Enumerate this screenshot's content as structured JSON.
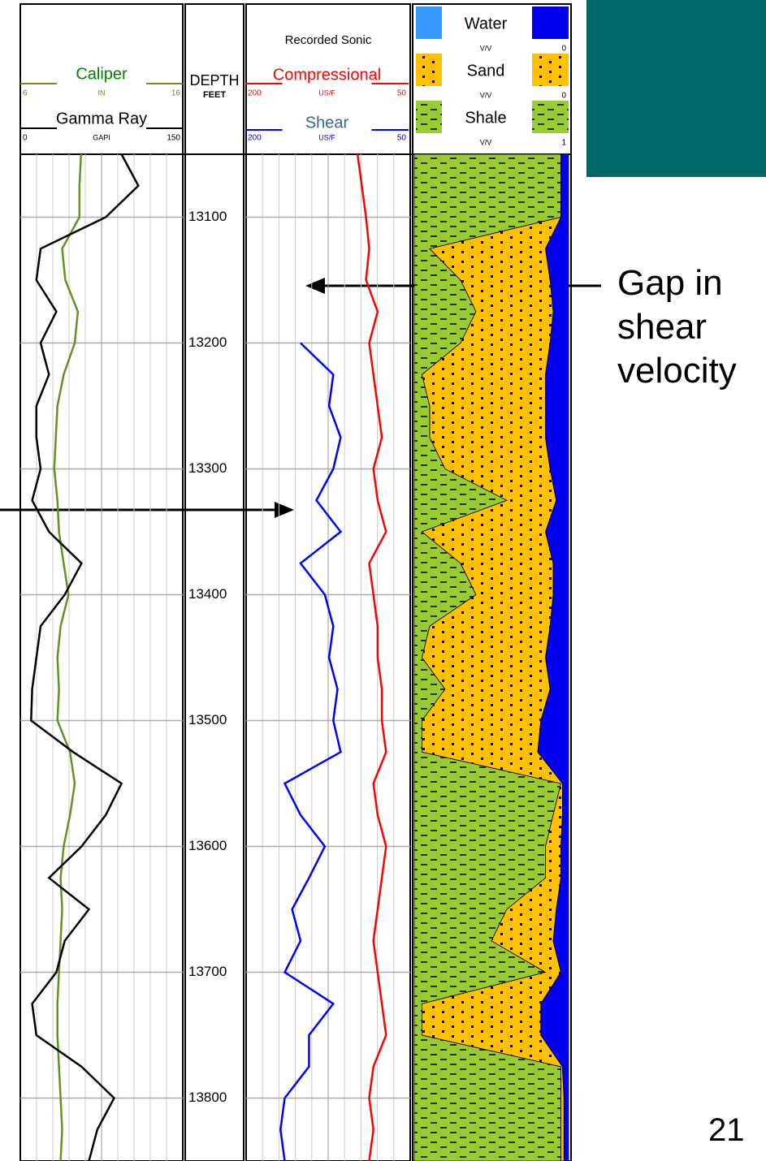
{
  "chart_data": {
    "type": "well-log",
    "y_label": "DEPTH",
    "y_unit": "FEET",
    "ylim": [
      13050,
      13850
    ],
    "yticks": [
      13100,
      13200,
      13300,
      13400,
      13500,
      13600,
      13700,
      13800
    ],
    "y": [
      13050,
      13075,
      13100,
      13125,
      13150,
      13175,
      13200,
      13225,
      13250,
      13275,
      13300,
      13325,
      13350,
      13375,
      13400,
      13425,
      13450,
      13475,
      13500,
      13525,
      13550,
      13575,
      13600,
      13625,
      13650,
      13675,
      13700,
      13725,
      13750,
      13775,
      13800,
      13825,
      13850
    ],
    "grid": true,
    "tracks": [
      {
        "type": "line",
        "series": [
          {
            "name": "Caliper",
            "unit": "IN",
            "color": "#6b8e23",
            "name_color": "#008000",
            "xlim": [
              6,
              16
            ],
            "values": [
              9.7,
              9.6,
              9.6,
              8.5,
              8.7,
              9.5,
              9.3,
              8.6,
              8.2,
              8.1,
              8.0,
              8.2,
              8.3,
              8.6,
              8.9,
              8.4,
              8.2,
              8.3,
              8.2,
              9.0,
              9.3,
              9.0,
              8.6,
              8.4,
              8.5,
              8.4,
              8.3,
              8.2,
              8.2,
              8.3,
              8.4,
              8.5,
              8.4
            ]
          },
          {
            "name": "Gamma Ray",
            "unit": "GAPI",
            "color": "#000000",
            "name_color": "#000000",
            "xlim": [
              0,
              150
            ],
            "values": [
              94,
              110,
              79,
              17,
              13,
              32,
              17,
              25,
              13,
              13,
              17,
              9,
              25,
              56,
              40,
              17,
              13,
              9,
              8,
              48,
              94,
              79,
              56,
              25,
              63,
              40,
              32,
              9,
              13,
              56,
              87,
              71,
              63
            ]
          }
        ]
      },
      {
        "type": "line",
        "title": "Recorded Sonic",
        "series": [
          {
            "name": "Compressional",
            "unit": "US/F",
            "color": "#ff0000",
            "name_color": "#ff0000",
            "xlim": [
              200,
              50
            ],
            "values": [
              96,
              92,
              88,
              85,
              88,
              77,
              85,
              81,
              77,
              73,
              81,
              77,
              69,
              85,
              81,
              77,
              77,
              73,
              73,
              69,
              81,
              77,
              69,
              73,
              77,
              81,
              77,
              73,
              69,
              81,
              85,
              81,
              85
            ]
          },
          {
            "name": "Shear",
            "unit": "US/F",
            "color": "#0000ff",
            "name_color": "#336699",
            "xlim": [
              200,
              50
            ],
            "values": [
              null,
              null,
              null,
              null,
              null,
              null,
              150,
              119,
              123,
              112,
              119,
              135,
              112,
              150,
              127,
              119,
              123,
              115,
              119,
              112,
              165,
              150,
              127,
              142,
              158,
              150,
              165,
              119,
              142,
              142,
              165,
              169,
              165
            ]
          }
        ]
      },
      {
        "type": "stack",
        "series": [
          {
            "name": "Water",
            "unit": "V/V",
            "scale_end": 0,
            "color": "#0000ee",
            "values": [
              0.05,
              0.05,
              0.05,
              0.15,
              0.12,
              0.1,
              0.12,
              0.15,
              0.15,
              0.15,
              0.12,
              0.08,
              0.15,
              0.1,
              0.1,
              0.12,
              0.15,
              0.12,
              0.18,
              0.2,
              0.04,
              0.04,
              0.05,
              0.05,
              0.08,
              0.1,
              0.05,
              0.18,
              0.18,
              0.04,
              0.03,
              0.03,
              0.03
            ]
          },
          {
            "name": "Sand",
            "unit": "V/V",
            "scale_end": 0,
            "color": "#ffc000",
            "values": [
              0,
              0,
              0,
              0.75,
              0.58,
              0.5,
              0.58,
              0.8,
              0.75,
              0.75,
              0.68,
              0.32,
              0.8,
              0.6,
              0.5,
              0.78,
              0.8,
              0.68,
              0.77,
              0.75,
              0.01,
              0.06,
              0.1,
              0.1,
              0.32,
              0.4,
              0.1,
              0.77,
              0.77,
              0.01,
              0.02,
              0.02,
              0.02
            ]
          },
          {
            "name": "Shale",
            "unit": "V/V",
            "scale_end": 1,
            "color": "#99cc33",
            "values": [
              0.95,
              0.95,
              0.95,
              0.1,
              0.3,
              0.4,
              0.3,
              0.05,
              0.1,
              0.1,
              0.2,
              0.6,
              0.05,
              0.3,
              0.4,
              0.1,
              0.05,
              0.2,
              0.05,
              0.05,
              0.95,
              0.9,
              0.85,
              0.85,
              0.6,
              0.5,
              0.85,
              0.05,
              0.05,
              0.95,
              0.95,
              0.95,
              0.95
            ]
          }
        ]
      }
    ],
    "annotations": [
      "Gap in shear velocity"
    ]
  },
  "slide_number": 21
}
